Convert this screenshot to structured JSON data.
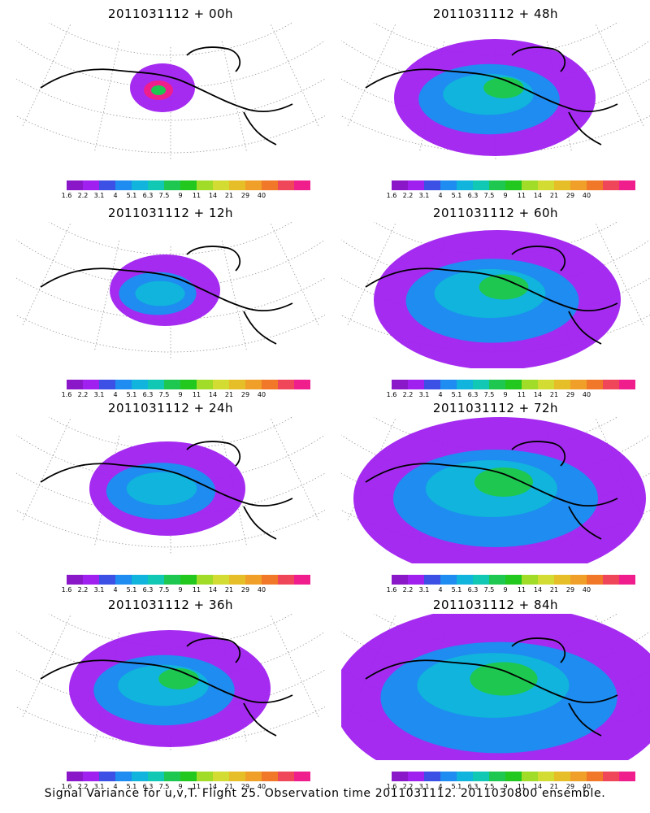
{
  "panels": [
    {
      "title": "2011031112 + 00h",
      "lead": "00h"
    },
    {
      "title": "2011031112 + 48h",
      "lead": "48h"
    },
    {
      "title": "2011031112 + 12h",
      "lead": "12h"
    },
    {
      "title": "2011031112 + 60h",
      "lead": "60h"
    },
    {
      "title": "2011031112 + 24h",
      "lead": "24h"
    },
    {
      "title": "2011031112 + 72h",
      "lead": "72h"
    },
    {
      "title": "2011031112 + 36h",
      "lead": "36h"
    },
    {
      "title": "2011031112 + 84h",
      "lead": "84h"
    }
  ],
  "colorbar": {
    "colors": [
      "#8a18c8",
      "#a020f0",
      "#3c50e6",
      "#1e8cf0",
      "#10b4dc",
      "#10c8b4",
      "#1ec850",
      "#22c81e",
      "#a0dc28",
      "#d2dc32",
      "#e6be28",
      "#f0a028",
      "#f07828",
      "#f0465a",
      "#f01e8c"
    ],
    "labels": [
      "1.6",
      "2.2",
      "3.1",
      "4",
      "5.1",
      "6.3",
      "7.5",
      "9",
      "11",
      "14",
      "21",
      "29",
      "40"
    ]
  },
  "footer": "Signal Variance for u,v,T. Flight 25. Observation time 2011031112. 2011030800 ensemble."
}
